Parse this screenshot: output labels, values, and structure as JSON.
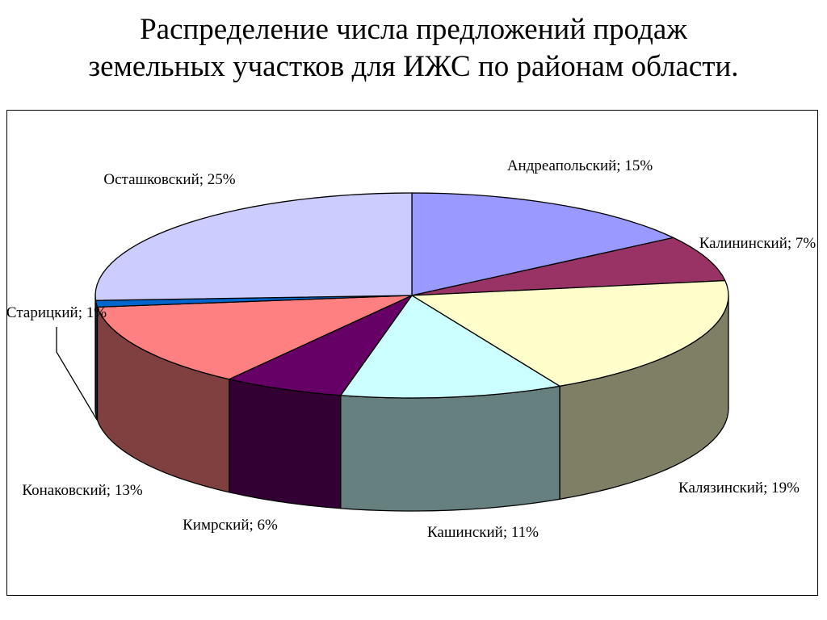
{
  "title_lines": [
    "Распределение числа предложений продаж",
    "земельных участков для ИЖС по районам области."
  ],
  "chart_data": {
    "type": "pie",
    "style": "3d-exploded-none",
    "title": "Распределение числа предложений продаж земельных участков для ИЖС по районам области.",
    "legend": "none",
    "slices": [
      {
        "name": "Андреапольский",
        "value": 15,
        "label": "Андреапольский; 15%",
        "color": "#9999ff",
        "side": "#5c5c99"
      },
      {
        "name": "Калининский",
        "value": 7,
        "label": "Калининский; 7%",
        "color": "#993366",
        "side": "#5c1f3d"
      },
      {
        "name": "Калязинский",
        "value": 19,
        "label": "Калязинский; 19%",
        "color": "#ffffcc",
        "side": "#7f7f66"
      },
      {
        "name": "Кашинский",
        "value": 11,
        "label": "Кашинский; 11%",
        "color": "#ccffff",
        "side": "#668080"
      },
      {
        "name": "Кимрский",
        "value": 6,
        "label": "Кимрский; 6%",
        "color": "#660066",
        "side": "#330033"
      },
      {
        "name": "Конаковский",
        "value": 13,
        "label": "Конаковский; 13%",
        "color": "#ff8080",
        "side": "#804040"
      },
      {
        "name": "Старицкий",
        "value": 1,
        "label": "Старицкий; 1%",
        "color": "#0066cc",
        "side": "#003366"
      },
      {
        "name": "Осташковский",
        "value": 25,
        "label": "Осташковский; 25%",
        "color": "#ccccff",
        "side": "#666680"
      }
    ]
  }
}
